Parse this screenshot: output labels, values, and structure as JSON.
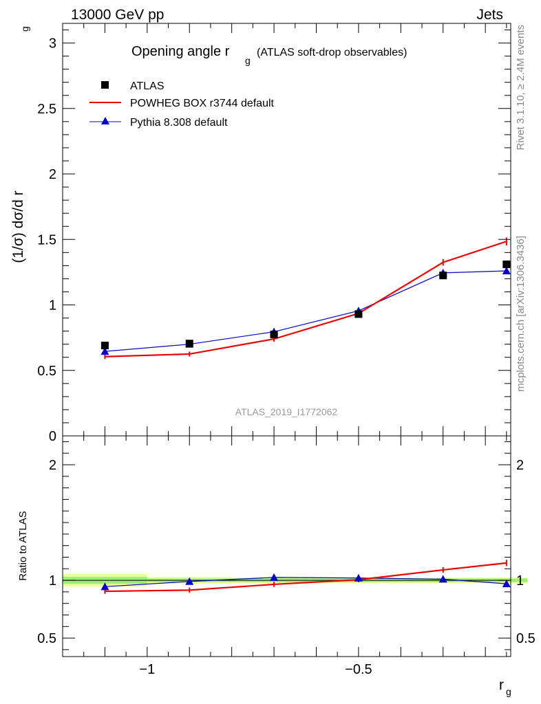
{
  "header": {
    "left": "13000 GeV pp",
    "right": "Jets"
  },
  "side_text": {
    "rivet": "Rivet 3.1.10, ≥ 2.4M events",
    "mcplots": "mcplots.cern.ch [arXiv:1306.3436]"
  },
  "chart_data": {
    "type": "line",
    "title_main": "Opening angle r",
    "title_sub": "g",
    "title_suffix": "(ATLAS soft-drop observables)",
    "analysis_label": "ATLAS_2019_I1772062",
    "xlabel_main": "r",
    "xlabel_sub": "g",
    "ylabel_main": "(1/σ) dσ/d r",
    "ylabel_sub": "g",
    "ratio_ylabel": "Ratio to ATLAS",
    "xlim": [
      -1.2,
      -0.14
    ],
    "ylim": [
      0,
      3.15
    ],
    "ratio_ylim": [
      0.34,
      2.25
    ],
    "x_ticks": [
      -1,
      -0.5
    ],
    "x_tick_labels": [
      "−1",
      "−0.5"
    ],
    "y_ticks": [
      0,
      0.5,
      1,
      1.5,
      2,
      2.5,
      3
    ],
    "y_tick_labels": [
      "0",
      "0.5",
      "1",
      "1.5",
      "2",
      "2.5",
      "3"
    ],
    "ratio_y_ticks": [
      0.5,
      1,
      2
    ],
    "ratio_y_tick_labels": [
      "0.5",
      "1",
      "2"
    ],
    "x": [
      -1.1,
      -0.9,
      -0.7,
      -0.5,
      -0.3,
      -0.15
    ],
    "bin_edges": [
      -1.2,
      -1.0,
      -0.8,
      -0.6,
      -0.4,
      -0.2,
      -0.1
    ],
    "series": [
      {
        "name": "ATLAS",
        "kind": "data",
        "color": "#000000",
        "marker": "square",
        "values": [
          0.69,
          0.705,
          0.775,
          0.93,
          1.225,
          1.31
        ]
      },
      {
        "name": "POWHEG BOX r3744 default",
        "kind": "line",
        "color": "#ee0000",
        "marker": "none",
        "values": [
          0.605,
          0.625,
          0.74,
          0.935,
          1.325,
          1.485
        ],
        "errors": [
          0.008,
          0.008,
          0.01,
          0.012,
          0.015,
          0.02
        ],
        "ratio": [
          0.905,
          0.915,
          0.965,
          1.005,
          1.09,
          1.15
        ],
        "ratio_errors": [
          0.01,
          0.01,
          0.01,
          0.01,
          0.012,
          0.015
        ]
      },
      {
        "name": "Pythia 8.308 default",
        "kind": "line",
        "color": "#0000cc",
        "marker": "triangle",
        "values": [
          0.645,
          0.7,
          0.795,
          0.955,
          1.245,
          1.26
        ],
        "ratio": [
          0.945,
          0.99,
          1.025,
          1.02,
          1.01,
          0.97
        ]
      }
    ],
    "band": {
      "green_halfwidth": [
        0.03,
        0.015,
        0.015,
        0.015,
        0.015,
        0.015
      ],
      "yellow_halfwidth": [
        0.055,
        0.03,
        0.025,
        0.025,
        0.025,
        0.025
      ],
      "green_color": "#99ee77",
      "yellow_color": "#eeff99"
    },
    "grid": false,
    "legend_position": "top-left"
  }
}
